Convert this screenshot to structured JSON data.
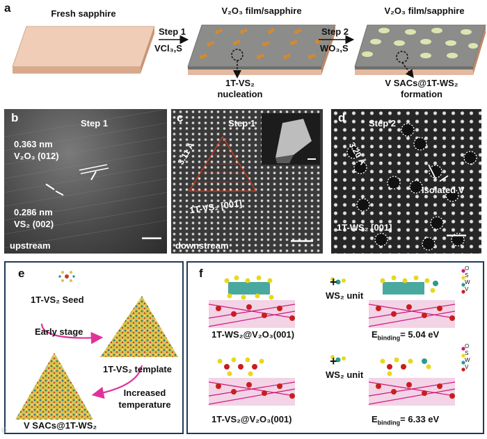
{
  "panel_a": {
    "label": "a",
    "fresh_title": "Fresh sapphire",
    "film_title_1": "V₂O₃ film/sapphire",
    "film_title_2": "V₂O₃ film/sapphire",
    "step1": "Step 1",
    "step1_reagent": "VCl₃,S",
    "step2": "Step 2",
    "step2_reagent": "WO₃,S",
    "annot1_line1": "1T-VS₂",
    "annot1_line2": "nucleation",
    "annot2_line1": "V SACs@1T-WS₂",
    "annot2_line2": "formation"
  },
  "panel_b": {
    "label": "b",
    "step": "Step 1",
    "d1": "0.363 nm",
    "d1_plane": "V₂O₃ (012)",
    "d2": "0.286 nm",
    "d2_plane": "VS₂ (002)",
    "region": "upstream"
  },
  "panel_c": {
    "label": "c",
    "step": "Step 1",
    "spacing": "3.11 Å",
    "zone": "1T-VS₂ [001]",
    "region": "downstream"
  },
  "panel_d": {
    "label": "d",
    "step": "Step 2",
    "spacing": "3.20 Å",
    "isolated": "Isolated V",
    "zone": "1T-WS₂ [001]"
  },
  "panel_e": {
    "label": "e",
    "seed": "1T-VS₂ Seed",
    "early": "Early stage",
    "template": "1T-VS₂ template",
    "increased_1": "Increased",
    "increased_2": "temperature",
    "final": "V SACs@1T-WS₂"
  },
  "panel_f": {
    "label": "f",
    "plus": "+",
    "unit": "WS₂ unit",
    "struct1": "1T-WS₂@V₂O₃(001)",
    "struct2": "1T-VS₂@V₂O₃(001)",
    "eb_prefix": "E",
    "eb_sub": "binding",
    "eb1_value": "= 5.04 eV",
    "eb2_value": "= 6.33 eV",
    "legend": [
      "O",
      "S",
      "W",
      "V"
    ]
  },
  "colors": {
    "sapphire_top": "#f0cdb6",
    "sapphire_side": "#d9a98c",
    "film_top": "#8c8c8a",
    "film_side": "#6f6f6d",
    "frame": "#1e3a58",
    "arrow_pink": "#e0339a",
    "o_atom": "#d0157a",
    "s_atom": "#e8d81c",
    "w_atom": "#2a9a8e",
    "v_atom": "#c81e1e"
  },
  "watermark": "© "
}
